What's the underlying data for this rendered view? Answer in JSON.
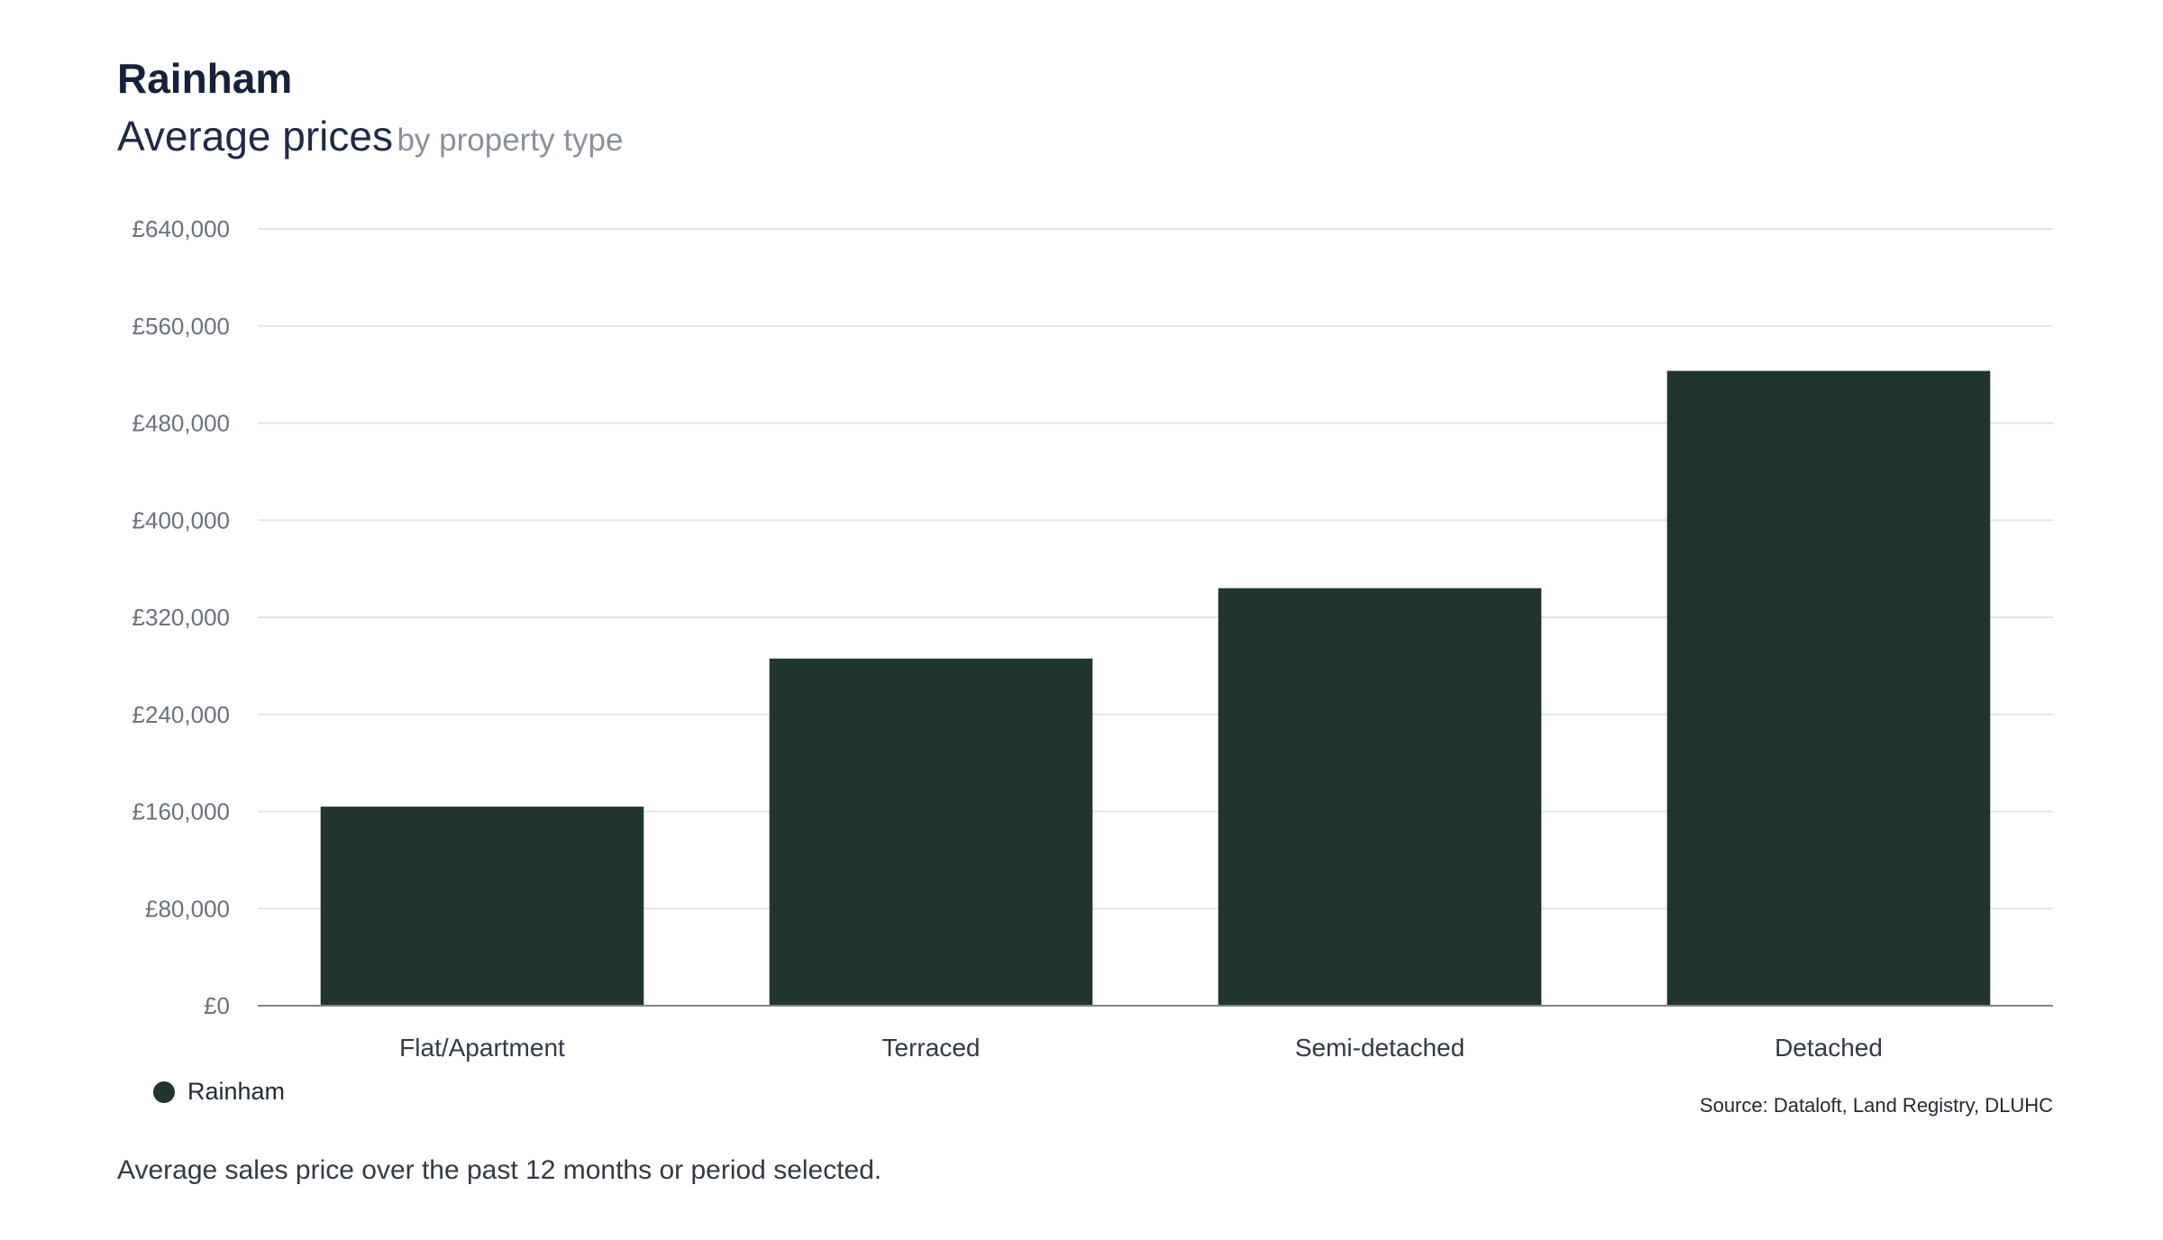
{
  "header": {
    "title": "Rainham",
    "subtitle_main": "Average prices",
    "subtitle_sub": "by property type"
  },
  "chart_data": {
    "type": "bar",
    "title": "Average prices",
    "subtitle": "by property type",
    "categories": [
      "Flat/Apartment",
      "Terraced",
      "Semi-detached",
      "Detached"
    ],
    "series": [
      {
        "name": "Rainham",
        "color": "#21352f",
        "values": [
          164000,
          286000,
          344000,
          523000
        ]
      }
    ],
    "y_ticks": [
      "£0",
      "£80,000",
      "£160,000",
      "£240,000",
      "£320,000",
      "£400,000",
      "£480,000",
      "£560,000",
      "£640,000"
    ],
    "ylim": [
      0,
      640000
    ],
    "grid": true,
    "legend": "bottom-left"
  },
  "legend": {
    "label": "Rainham",
    "color": "#21352f"
  },
  "source": "Source: Dataloft, Land Registry, DLUHC",
  "footnote": "Average sales price over the past 12 months or period selected."
}
